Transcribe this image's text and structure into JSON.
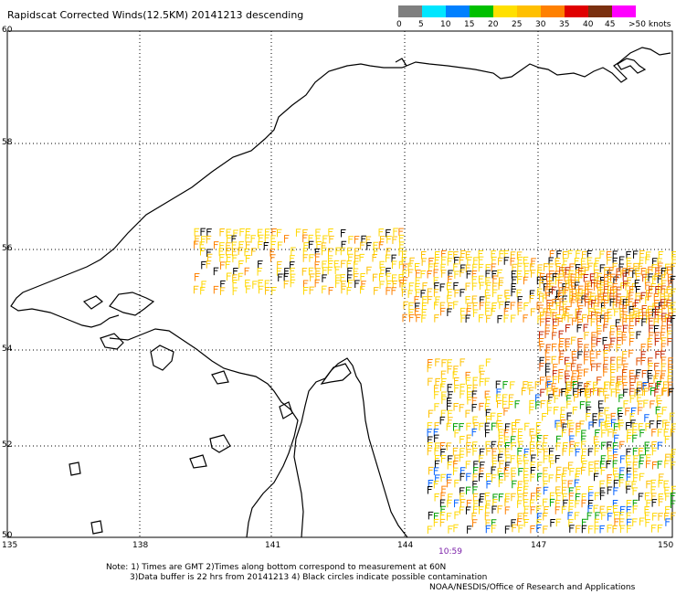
{
  "title": "Rapidscat Corrected Winds(12.5KM) 20141213 descending",
  "colorbar": {
    "colors": [
      "#7f7f7f",
      "#00e6ff",
      "#0080ff",
      "#00c000",
      "#ffe000",
      "#ffc000",
      "#ff8000",
      "#e00000",
      "#7a3010",
      "#ff00ff",
      "#8000c0"
    ],
    "labels": [
      "0",
      "5",
      "10",
      "15",
      "20",
      "25",
      "30",
      "35",
      "40",
      "45",
      ">50 knots"
    ]
  },
  "axes": {
    "lat_labels": [
      "60",
      "58",
      "56",
      "54",
      "52",
      "50"
    ],
    "lon_labels": [
      "135",
      "138",
      "141",
      "144",
      "147",
      "150"
    ]
  },
  "time_label": "10:59",
  "notes": {
    "line1": "Note: 1) Times are GMT 2)Times along bottom correspond to measurement at 60N",
    "line2": "3)Data buffer is 22 hrs from 20141213 4) Black circles indicate possible contamination",
    "line3": "NOAA/NESDIS/Office of Research and Applications"
  },
  "colors": {
    "coast": "#000000",
    "grid": "#000000",
    "time": "#7a1fa8"
  }
}
